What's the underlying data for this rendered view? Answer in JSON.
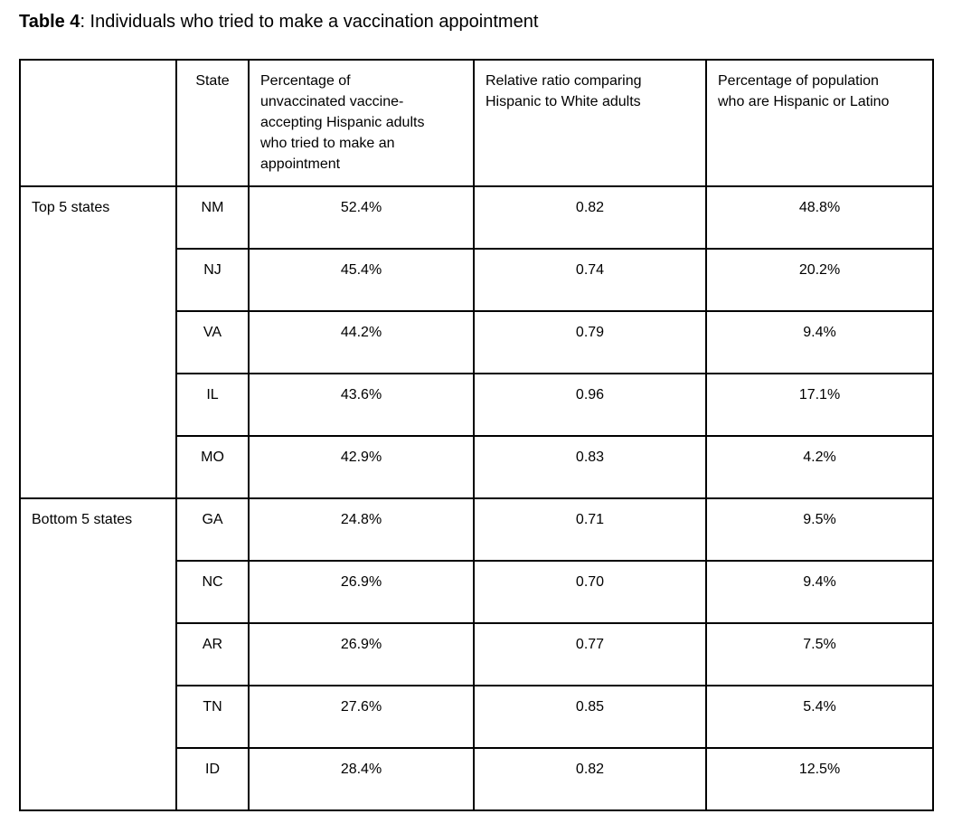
{
  "caption": {
    "label": "Table 4",
    "text": ": Individuals who tried to make a vaccination appointment"
  },
  "table": {
    "headers": {
      "group": "",
      "state": "State",
      "pct_tried": "Percentage of\nunvaccinated vaccine-\naccepting Hispanic adults\nwho tried to make an\nappointment",
      "relative_ratio": "Relative ratio comparing\nHispanic to White adults",
      "pct_hispanic_population": "Percentage of population\nwho are Hispanic or Latino"
    },
    "groups": [
      {
        "label": "Top 5 states",
        "rows": [
          {
            "state": "NM",
            "pct_tried": "52.4%",
            "relative_ratio": "0.82",
            "pct_hispanic_population": "48.8%"
          },
          {
            "state": "NJ",
            "pct_tried": "45.4%",
            "relative_ratio": "0.74",
            "pct_hispanic_population": "20.2%"
          },
          {
            "state": "VA",
            "pct_tried": "44.2%",
            "relative_ratio": "0.79",
            "pct_hispanic_population": "9.4%"
          },
          {
            "state": "IL",
            "pct_tried": "43.6%",
            "relative_ratio": "0.96",
            "pct_hispanic_population": "17.1%"
          },
          {
            "state": "MO",
            "pct_tried": "42.9%",
            "relative_ratio": "0.83",
            "pct_hispanic_population": "4.2%"
          }
        ]
      },
      {
        "label": "Bottom 5 states",
        "rows": [
          {
            "state": "GA",
            "pct_tried": "24.8%",
            "relative_ratio": "0.71",
            "pct_hispanic_population": "9.5%"
          },
          {
            "state": "NC",
            "pct_tried": "26.9%",
            "relative_ratio": "0.70",
            "pct_hispanic_population": "9.4%"
          },
          {
            "state": "AR",
            "pct_tried": "26.9%",
            "relative_ratio": "0.77",
            "pct_hispanic_population": "7.5%"
          },
          {
            "state": "TN",
            "pct_tried": "27.6%",
            "relative_ratio": "0.85",
            "pct_hispanic_population": "5.4%"
          },
          {
            "state": "ID",
            "pct_tried": "28.4%",
            "relative_ratio": "0.82",
            "pct_hispanic_population": "12.5%"
          }
        ]
      }
    ]
  }
}
